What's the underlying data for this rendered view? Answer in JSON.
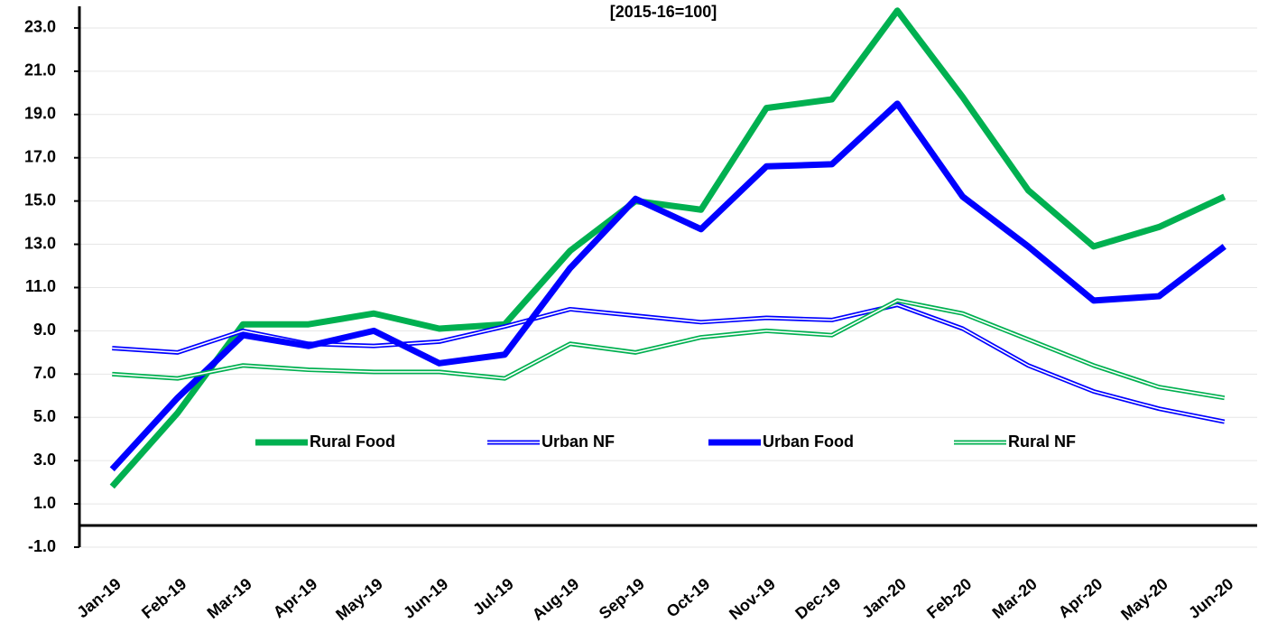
{
  "chart_data": {
    "type": "line",
    "subtitle": "[2015-16=100]",
    "categories": [
      "Jan-19",
      "Feb-19",
      "Mar-19",
      "Apr-19",
      "May-19",
      "Jun-19",
      "Jul-19",
      "Aug-19",
      "Sep-19",
      "Oct-19",
      "Nov-19",
      "Dec-19",
      "Jan-20",
      "Feb-20",
      "Mar-20",
      "Apr-20",
      "May-20",
      "Jun-20"
    ],
    "series": [
      {
        "name": "Rural Food",
        "color": "#00b050",
        "line_style": "thick",
        "values": [
          1.8,
          5.2,
          9.3,
          9.3,
          9.8,
          9.1,
          9.3,
          12.7,
          15.0,
          14.6,
          19.3,
          19.7,
          23.8,
          19.8,
          15.5,
          12.9,
          13.8,
          15.2
        ]
      },
      {
        "name": "Urban NF",
        "color": "#0000ff",
        "line_style": "double",
        "values": [
          8.2,
          8.0,
          9.0,
          8.4,
          8.3,
          8.5,
          9.2,
          10.0,
          9.7,
          9.4,
          9.6,
          9.5,
          10.2,
          9.1,
          7.4,
          6.2,
          5.4,
          4.8
        ]
      },
      {
        "name": "Urban Food",
        "color": "#0000ff",
        "line_style": "thick",
        "values": [
          2.6,
          5.9,
          8.8,
          8.3,
          9.0,
          7.5,
          7.9,
          11.9,
          15.1,
          13.7,
          16.6,
          16.7,
          19.5,
          15.2,
          12.9,
          10.4,
          10.6,
          12.9
        ]
      },
      {
        "name": "Rural NF",
        "color": "#00b050",
        "line_style": "double",
        "values": [
          7.0,
          6.8,
          7.4,
          7.2,
          7.1,
          7.1,
          6.8,
          8.4,
          8.0,
          8.7,
          9.0,
          8.8,
          10.4,
          9.8,
          8.6,
          7.4,
          6.4,
          5.9
        ]
      }
    ],
    "ylim": [
      -1,
      24
    ],
    "yticks": [
      {
        "value": -1,
        "label": "-1.0"
      },
      {
        "value": 1,
        "label": "1.0"
      },
      {
        "value": 3,
        "label": "3.0"
      },
      {
        "value": 5,
        "label": "5.0"
      },
      {
        "value": 7,
        "label": "7.0"
      },
      {
        "value": 9,
        "label": "9.0"
      },
      {
        "value": 11,
        "label": "11.0"
      },
      {
        "value": 13,
        "label": "13.0"
      },
      {
        "value": 15,
        "label": "15.0"
      },
      {
        "value": 17,
        "label": "17.0"
      },
      {
        "value": 19,
        "label": "19.0"
      },
      {
        "value": 21,
        "label": "21.0"
      },
      {
        "value": 23,
        "label": "23.0"
      }
    ],
    "grid": true,
    "legend": "center"
  }
}
